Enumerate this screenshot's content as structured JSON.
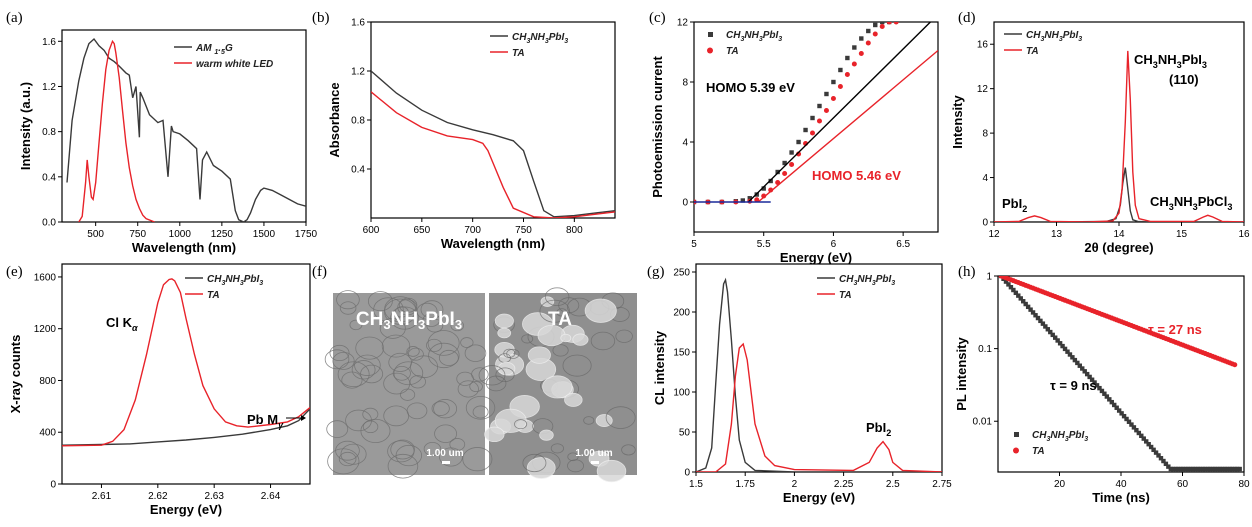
{
  "colors": {
    "black_series": "#3a3a3a",
    "red_series": "#e8232a",
    "blue_baseline": "#1a2a9a",
    "sem_bg": "#9a9a9a"
  },
  "chart_data": [
    {
      "panel": "(a)",
      "type": "line",
      "xlabel": "Wavelength (nm)",
      "ylabel": "Intensity (a.u.)",
      "xlim": [
        300,
        1750
      ],
      "ylim": [
        0,
        1.7
      ],
      "xticks": [
        500,
        750,
        1000,
        1250,
        1500,
        1750
      ],
      "xtick_labels": [
        "500",
        "750",
        "1000",
        "1250",
        "1500",
        "1750"
      ],
      "yticks": [
        0,
        0.4,
        0.8,
        1.2,
        1.6
      ],
      "ytick_labels": [
        "0.0",
        "0.4",
        "0.8",
        "1.2",
        "1.6"
      ],
      "legend": "top-right",
      "series": [
        {
          "name": "AM 1.5G",
          "color": "#3a3a3a",
          "x": [
            330,
            360,
            400,
            430,
            460,
            490,
            520,
            550,
            580,
            610,
            640,
            680,
            700,
            720,
            740,
            760,
            765,
            780,
            820,
            870,
            900,
            930,
            950,
            960,
            1000,
            1050,
            1100,
            1120,
            1135,
            1160,
            1200,
            1250,
            1300,
            1330,
            1350,
            1380,
            1400,
            1420,
            1450,
            1480,
            1500,
            1550,
            1600,
            1650,
            1700,
            1750
          ],
          "y": [
            0.35,
            0.9,
            1.25,
            1.45,
            1.58,
            1.62,
            1.56,
            1.52,
            1.45,
            1.42,
            1.38,
            1.32,
            1.3,
            1.1,
            1.2,
            0.75,
            1.15,
            1.1,
            0.95,
            0.88,
            0.9,
            0.4,
            0.85,
            0.8,
            0.78,
            0.72,
            0.65,
            0.2,
            0.55,
            0.62,
            0.5,
            0.45,
            0.38,
            0.1,
            0.02,
            0.0,
            0.02,
            0.08,
            0.2,
            0.28,
            0.3,
            0.28,
            0.24,
            0.2,
            0.16,
            0.14
          ]
        },
        {
          "name": "warm white LED",
          "color": "#e8232a",
          "x": [
            400,
            420,
            440,
            450,
            460,
            475,
            485,
            500,
            520,
            540,
            560,
            580,
            600,
            610,
            620,
            640,
            660,
            680,
            700,
            720,
            740,
            760,
            780,
            800,
            850
          ],
          "y": [
            0.0,
            0.05,
            0.35,
            0.55,
            0.4,
            0.22,
            0.2,
            0.35,
            0.7,
            1.05,
            1.35,
            1.52,
            1.6,
            1.58,
            1.5,
            1.28,
            0.98,
            0.7,
            0.48,
            0.32,
            0.2,
            0.12,
            0.06,
            0.03,
            0.0
          ]
        }
      ]
    },
    {
      "panel": "(b)",
      "type": "line",
      "xlabel": "Wavelength (nm)",
      "ylabel": "Absorbance",
      "xlim": [
        600,
        840
      ],
      "ylim": [
        0,
        1.6
      ],
      "xticks": [
        600,
        650,
        700,
        750,
        800
      ],
      "xtick_labels": [
        "600",
        "650",
        "700",
        "750",
        "800"
      ],
      "yticks": [
        0.4,
        0.8,
        1.2,
        1.6
      ],
      "ytick_labels": [
        "0.4",
        "0.8",
        "1.2",
        "1.6"
      ],
      "legend": "top-right",
      "series": [
        {
          "name": "CH3NH3PbI3",
          "color": "#3a3a3a",
          "x": [
            600,
            625,
            650,
            675,
            700,
            720,
            740,
            750,
            760,
            770,
            780,
            800,
            820,
            840
          ],
          "y": [
            1.2,
            1.02,
            0.88,
            0.78,
            0.72,
            0.68,
            0.63,
            0.55,
            0.3,
            0.06,
            0.01,
            0.02,
            0.04,
            0.06
          ]
        },
        {
          "name": "TA",
          "color": "#e8232a",
          "x": [
            600,
            625,
            650,
            675,
            700,
            710,
            715,
            720,
            730,
            740,
            760,
            780,
            800,
            820,
            840
          ],
          "y": [
            1.03,
            0.86,
            0.74,
            0.67,
            0.64,
            0.61,
            0.55,
            0.45,
            0.25,
            0.08,
            0.01,
            0.0,
            0.01,
            0.03,
            0.05
          ]
        }
      ]
    },
    {
      "panel": "(c)",
      "type": "scatter",
      "xlabel": "Energy (eV)",
      "ylabel": "Photoemission current",
      "xlim": [
        5,
        6.75
      ],
      "ylim": [
        -2,
        12
      ],
      "xticks": [
        5,
        5.5,
        6,
        6.5
      ],
      "xtick_labels": [
        "5",
        "5.5",
        "6",
        "6.5"
      ],
      "yticks": [
        0,
        4,
        8,
        12
      ],
      "ytick_labels": [
        "0",
        "4",
        "8",
        "12"
      ],
      "legend": "top-left",
      "annotations": [
        {
          "text": "HOMO 5.39 eV",
          "color": "#000000"
        },
        {
          "text": "HOMO 5.46 eV",
          "color": "#e8232a"
        }
      ],
      "series": [
        {
          "name": "CH3NH3PbI3",
          "color": "#3a3a3a",
          "marker": "square",
          "x": [
            5.0,
            5.1,
            5.2,
            5.3,
            5.35,
            5.4,
            5.45,
            5.5,
            5.55,
            5.6,
            5.65,
            5.7,
            5.75,
            5.8,
            5.85,
            5.9,
            5.95,
            6.0,
            6.05,
            6.1,
            6.15,
            6.2,
            6.25,
            6.3,
            6.35,
            6.4
          ],
          "y": [
            0,
            0,
            0,
            0.05,
            0.1,
            0.25,
            0.5,
            0.9,
            1.4,
            2.0,
            2.6,
            3.3,
            4.0,
            4.8,
            5.6,
            6.4,
            7.2,
            8.0,
            8.8,
            9.6,
            10.3,
            10.9,
            11.4,
            11.8,
            12.0,
            12.0
          ]
        },
        {
          "name": "TA",
          "color": "#e8232a",
          "marker": "circle",
          "x": [
            5.0,
            5.1,
            5.2,
            5.3,
            5.4,
            5.45,
            5.5,
            5.55,
            5.6,
            5.65,
            5.7,
            5.75,
            5.8,
            5.85,
            5.9,
            5.95,
            6.0,
            6.05,
            6.1,
            6.15,
            6.2,
            6.25,
            6.3,
            6.35,
            6.4,
            6.45
          ],
          "y": [
            0,
            0,
            0,
            0,
            0.05,
            0.15,
            0.4,
            0.8,
            1.3,
            1.9,
            2.5,
            3.2,
            3.9,
            4.6,
            5.4,
            6.1,
            6.9,
            7.7,
            8.5,
            9.2,
            9.9,
            10.6,
            11.2,
            11.7,
            12.0,
            12.0
          ]
        },
        {
          "name": "",
          "color": "#000000",
          "type": "line",
          "x": [
            5.39,
            6.75
          ],
          "y": [
            0,
            12.5
          ]
        },
        {
          "name": "",
          "color": "#e8232a",
          "type": "line",
          "x": [
            5.46,
            6.75
          ],
          "y": [
            0,
            10.1
          ]
        },
        {
          "name": "",
          "color": "#1a2a9a",
          "type": "line",
          "x": [
            5.0,
            5.55
          ],
          "y": [
            0,
            0
          ]
        }
      ]
    },
    {
      "panel": "(d)",
      "type": "line",
      "xlabel": "2θ (degree)",
      "ylabel": "Intensity",
      "xlim": [
        12,
        16
      ],
      "ylim": [
        0,
        18
      ],
      "xticks": [
        12,
        13,
        14,
        15,
        16
      ],
      "xtick_labels": [
        "12",
        "13",
        "14",
        "15",
        "16"
      ],
      "yticks": [
        0,
        4,
        8,
        12,
        16
      ],
      "ytick_labels": [
        "0",
        "4",
        "8",
        "12",
        "16"
      ],
      "legend": "top-left",
      "annotations": [
        {
          "text": "CH3NH3PbI3",
          "text2": "(110)"
        },
        {
          "text": "PbI2"
        },
        {
          "text": "CH3NH3PbCl3"
        }
      ],
      "series": [
        {
          "name": "CH3NH3PbI3",
          "color": "#3a3a3a",
          "x": [
            12,
            13,
            13.8,
            13.95,
            14.02,
            14.06,
            14.1,
            14.14,
            14.18,
            14.22,
            14.3,
            14.5,
            15,
            16
          ],
          "y": [
            0,
            0,
            0.05,
            0.3,
            1.5,
            3.5,
            4.9,
            3.0,
            1.0,
            0.2,
            0.05,
            0,
            0,
            0
          ]
        },
        {
          "name": "TA",
          "color": "#e8232a",
          "x": [
            12,
            12.4,
            12.55,
            12.65,
            12.75,
            12.9,
            13.5,
            13.9,
            14.0,
            14.05,
            14.1,
            14.14,
            14.18,
            14.22,
            14.26,
            14.32,
            14.5,
            15.2,
            15.35,
            15.42,
            15.5,
            15.65,
            16
          ],
          "y": [
            0,
            0.05,
            0.4,
            0.55,
            0.4,
            0.05,
            0,
            0.1,
            0.8,
            3.0,
            9.0,
            15.4,
            11.0,
            4.5,
            1.5,
            0.3,
            0.05,
            0.05,
            0.45,
            0.6,
            0.45,
            0.05,
            0
          ]
        }
      ]
    },
    {
      "panel": "(e)",
      "type": "line",
      "xlabel": "Energy (eV)",
      "ylabel": "X-ray counts",
      "xlim": [
        2.603,
        2.647
      ],
      "ylim": [
        0,
        1700
      ],
      "xticks": [
        2.61,
        2.62,
        2.63,
        2.64
      ],
      "xtick_labels": [
        "2.61",
        "2.62",
        "2.63",
        "2.64"
      ],
      "yticks": [
        0,
        400,
        800,
        1200,
        1600
      ],
      "ytick_labels": [
        "0",
        "400",
        "800",
        "1200",
        "1600"
      ],
      "legend": "top-right",
      "annotations": [
        {
          "text": "Cl Kα"
        },
        {
          "text": "Pb Mγ"
        }
      ],
      "series": [
        {
          "name": "CH3NH3PbI3",
          "color": "#3a3a3a",
          "x": [
            2.603,
            2.61,
            2.615,
            2.62,
            2.625,
            2.63,
            2.635,
            2.64,
            2.643,
            2.645,
            2.647
          ],
          "y": [
            300,
            305,
            310,
            325,
            340,
            360,
            385,
            420,
            450,
            490,
            580
          ]
        },
        {
          "name": "TA",
          "color": "#e8232a",
          "x": [
            2.603,
            2.61,
            2.612,
            2.614,
            2.616,
            2.618,
            2.62,
            2.621,
            2.622,
            2.6225,
            2.623,
            2.624,
            2.625,
            2.6265,
            2.628,
            2.63,
            2.632,
            2.634,
            2.636,
            2.64,
            2.643,
            2.645,
            2.647
          ],
          "y": [
            295,
            300,
            330,
            420,
            650,
            1000,
            1400,
            1540,
            1580,
            1585,
            1570,
            1480,
            1280,
            1000,
            760,
            580,
            480,
            450,
            440,
            460,
            480,
            520,
            590
          ]
        }
      ]
    },
    {
      "panel": "(f)",
      "type": "image",
      "images": [
        {
          "label": "CH3NH3PbI3",
          "scale": "1.00 um"
        },
        {
          "label": "TA",
          "scale": "1.00 um"
        }
      ]
    },
    {
      "panel": "(g)",
      "type": "line",
      "xlabel": "Energy (eV)",
      "ylabel": "CL intensity",
      "xlim": [
        1.5,
        2.75
      ],
      "ylim": [
        0,
        260
      ],
      "xticks": [
        1.5,
        1.75,
        2,
        2.25,
        2.5,
        2.75
      ],
      "xtick_labels": [
        "1.5",
        "1.75",
        "2",
        "2.25",
        "2.5",
        "2.75"
      ],
      "yticks": [
        0,
        50,
        100,
        150,
        200,
        250
      ],
      "ytick_labels": [
        "0",
        "50",
        "100",
        "150",
        "200",
        "250"
      ],
      "legend": "top-right",
      "annotations": [
        {
          "text": "PbI2"
        }
      ],
      "series": [
        {
          "name": "CH3NH3PbI3",
          "color": "#3a3a3a",
          "x": [
            1.5,
            1.55,
            1.58,
            1.6,
            1.62,
            1.64,
            1.65,
            1.66,
            1.68,
            1.7,
            1.72,
            1.75,
            1.8,
            2.0,
            2.75
          ],
          "y": [
            0,
            5,
            30,
            110,
            185,
            235,
            240,
            225,
            165,
            95,
            40,
            12,
            2,
            0,
            0
          ]
        },
        {
          "name": "TA",
          "color": "#e8232a",
          "x": [
            1.5,
            1.6,
            1.65,
            1.68,
            1.7,
            1.72,
            1.74,
            1.76,
            1.78,
            1.8,
            1.85,
            1.9,
            2.0,
            2.3,
            2.38,
            2.42,
            2.45,
            2.48,
            2.5,
            2.55,
            2.75
          ],
          "y": [
            0,
            0,
            10,
            60,
            120,
            155,
            160,
            140,
            100,
            60,
            20,
            8,
            3,
            2,
            12,
            30,
            38,
            28,
            12,
            2,
            0
          ]
        }
      ]
    },
    {
      "panel": "(h)",
      "type": "scatter",
      "xlabel": "Time (ns)",
      "ylabel": "PL intensity",
      "xscale": "log-y",
      "xlim": [
        0,
        80
      ],
      "ylim": [
        0.002,
        1
      ],
      "xticks": [
        20,
        40,
        60,
        80
      ],
      "xtick_labels": [
        "20",
        "40",
        "60",
        "80"
      ],
      "yticks": [
        1,
        0.1,
        0.01
      ],
      "ytick_labels": [
        "1",
        "0.1",
        "0.01"
      ],
      "legend": "bottom-left",
      "annotations": [
        {
          "text": "τ = 27 ns"
        },
        {
          "text": "τ = 9 ns"
        }
      ],
      "series": [
        {
          "name": "CH3NH3PbI3",
          "color": "#3a3a3a",
          "marker": "square",
          "tau": 9,
          "x_range": [
            1,
            79
          ]
        },
        {
          "name": "TA",
          "color": "#e8232a",
          "marker": "circle",
          "tau": 27,
          "x_range": [
            1,
            77
          ]
        }
      ]
    }
  ]
}
